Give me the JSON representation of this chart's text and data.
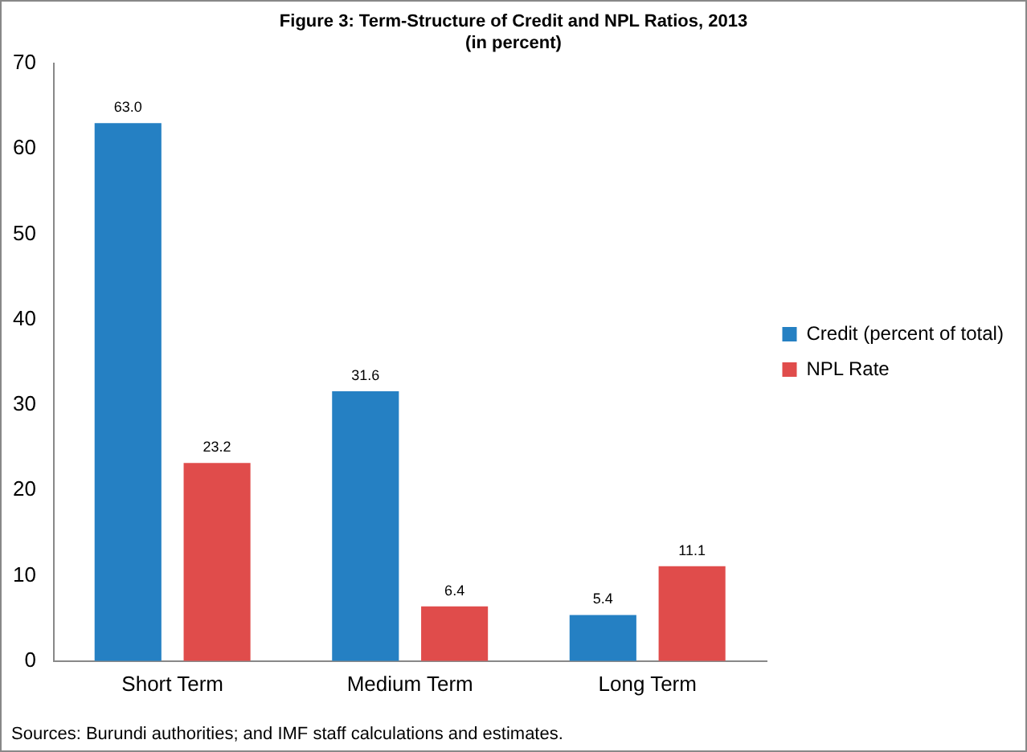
{
  "chart_data": {
    "type": "bar",
    "title": "Figure 3: Term-Structure of Credit and NPL Ratios, 2013",
    "subtitle": "(in percent)",
    "categories": [
      "Short Term",
      "Medium Term",
      "Long Term"
    ],
    "series": [
      {
        "name": "Credit (percent of total)",
        "color": "#2580c3",
        "values": [
          63.0,
          31.6,
          5.4
        ],
        "value_labels": [
          "63.0",
          "31.6",
          "5.4"
        ]
      },
      {
        "name": "NPL Rate",
        "color": "#e04c4b",
        "values": [
          23.2,
          6.4,
          11.1
        ],
        "value_labels": [
          "23.2",
          "6.4",
          "11.1"
        ]
      }
    ],
    "ylim": [
      0,
      70
    ],
    "yticks": [
      0,
      10,
      20,
      30,
      40,
      50,
      60,
      70
    ],
    "grid": false,
    "legend": "right",
    "annotations": [
      "Sources: Burundi authorities; and IMF staff calculations and estimates."
    ]
  }
}
